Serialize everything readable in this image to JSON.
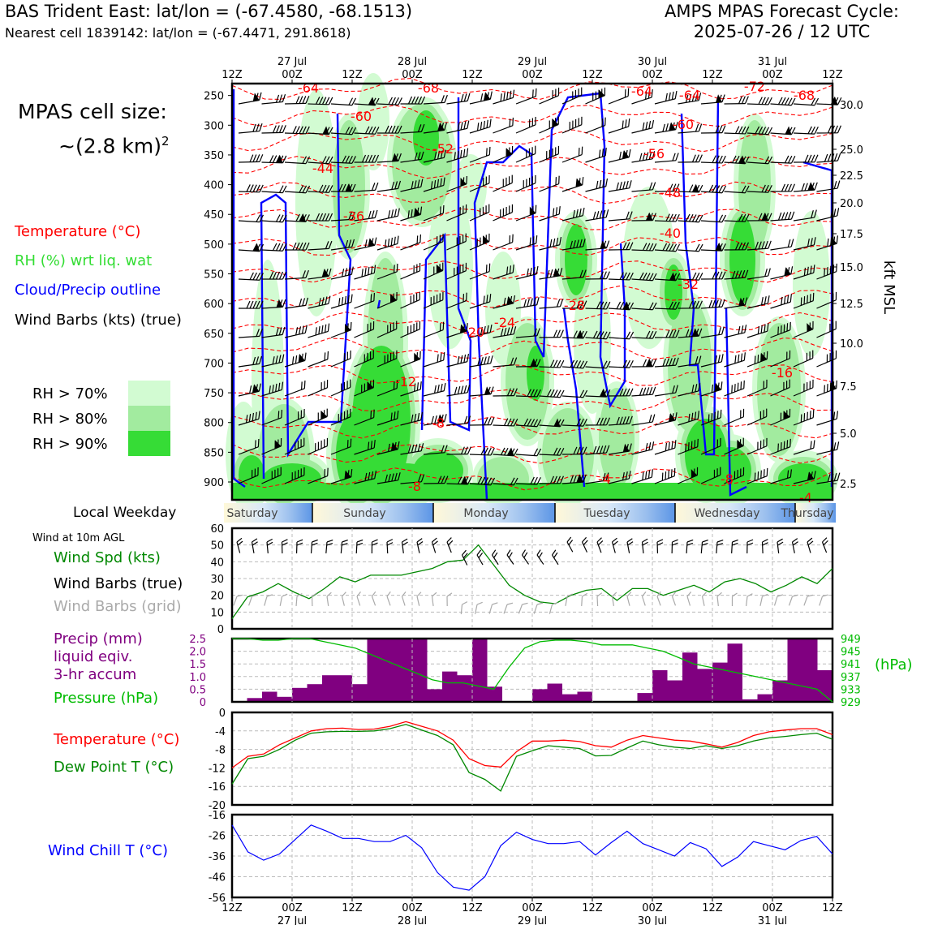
{
  "header": {
    "station": "BAS Trident East: lat/lon = (-67.4580, -68.1513)",
    "nearest": "Nearest cell 1839142: lat/lon = (-67.4471, 291.8618)",
    "cycle_line1": "AMPS MPAS Forecast Cycle:",
    "cycle_line2": "2025-07-26 / 12 UTC"
  },
  "cell_size": {
    "line1": "MPAS cell size:",
    "line2": "~(2.8 km)",
    "sup": "2"
  },
  "legend": {
    "temperature": "Temperature (°C)",
    "rh": "RH (%) wrt liq. wat",
    "cloud": "Cloud/Precip outline",
    "wind": "Wind Barbs (kts) (true)"
  },
  "rh_legend": [
    {
      "label": "RH > 70%",
      "color": "#d2fbd2"
    },
    {
      "label": "RH > 80%",
      "color": "#a2eb9f"
    },
    {
      "label": "RH > 90%",
      "color": "#36dc36"
    }
  ],
  "time_axis": {
    "top_hours": [
      "12Z",
      "00Z",
      "12Z",
      "00Z",
      "12Z",
      "00Z",
      "12Z",
      "00Z",
      "12Z",
      "00Z",
      "12Z"
    ],
    "dates": [
      {
        "label": "27 Jul",
        "index": 1
      },
      {
        "label": "28 Jul",
        "index": 3
      },
      {
        "label": "29 Jul",
        "index": 5
      },
      {
        "label": "30 Jul",
        "index": 7
      },
      {
        "label": "31 Jul",
        "index": 9
      }
    ]
  },
  "weekday": {
    "title": "Local Weekday",
    "days": [
      "Saturday",
      "Sunday",
      "Monday",
      "Tuesday",
      "Wednesday",
      "Thursday"
    ]
  },
  "colors": {
    "temperature": "#ff0000",
    "rh": "#33dd33",
    "cloud": "#0000ff",
    "precip": "#800080",
    "pressure": "#00bb00",
    "windspeed": "#008800",
    "dewpoint": "#008800",
    "windchill": "#0000ff",
    "grid_barbs": "#aaaaaa"
  },
  "panel_labels": {
    "wind10m_title": "Wind at 10m AGL",
    "wind_spd": "Wind Spd (kts)",
    "wind_barbs_true": "Wind Barbs (true)",
    "wind_barbs_grid": "Wind Barbs (grid)",
    "precip_1": "Precip (mm)",
    "precip_2": "liquid eqiv.",
    "precip_3": "3-hr accum",
    "pressure": "Pressure (hPa)",
    "pressure_unit": "(hPa)",
    "temp": "Temperature (°C)",
    "dewpoint": "Dew Point T (°C)",
    "windchill": "Wind Chill T (°C)",
    "kft": "kft MSL"
  },
  "chart_data": [
    {
      "type": "heatmap",
      "title": "Vertical cross-section",
      "y_pressure_ticks": [
        250,
        300,
        350,
        400,
        450,
        500,
        550,
        600,
        650,
        700,
        750,
        800,
        850,
        900
      ],
      "y_height_ticks_kft": [
        "30.0",
        "25.0",
        "22.5",
        "20.0",
        "17.5",
        "15.0",
        "12.5",
        "10.0",
        "7.5",
        "5.0",
        "2.5"
      ],
      "temperature_contour_labels": [
        "-64",
        "-68",
        "-72",
        "-68",
        "-64",
        "-64",
        "-60",
        "-60",
        "-56",
        "-52",
        "-48",
        "-44",
        "-40",
        "-36",
        "-32",
        "-28",
        "-24",
        "-20",
        "-16",
        "-12",
        "-8",
        "-8",
        "-4",
        "-4",
        "-8"
      ]
    },
    {
      "type": "line",
      "ylim": [
        0,
        60
      ],
      "yticks": [
        0,
        10,
        20,
        30,
        40,
        50,
        60
      ],
      "series": [
        {
          "name": "Wind Spd (kts)",
          "values": [
            6,
            19,
            22,
            27,
            22,
            18,
            24,
            31,
            28,
            32,
            32,
            32,
            34,
            36,
            40,
            41,
            50,
            38,
            26,
            20,
            16,
            15,
            20,
            23,
            24,
            17,
            24,
            24,
            20,
            23,
            26,
            22,
            28,
            30,
            27,
            22,
            26,
            31,
            27,
            36
          ]
        }
      ]
    },
    {
      "type": "bar",
      "ylim": [
        0,
        2.5
      ],
      "yticks": [
        "0",
        "0.5",
        "1.0",
        "1.5",
        "2.0",
        "2.5"
      ],
      "precip_values": [
        0,
        0.15,
        0.4,
        0.2,
        0.55,
        0.7,
        1.05,
        1.05,
        0.7,
        2.5,
        2.5,
        2.5,
        2.5,
        0.5,
        1.2,
        1.05,
        2.5,
        0.6,
        0,
        0,
        0.5,
        0.72,
        0.3,
        0.4,
        0,
        0,
        0,
        0.35,
        1.25,
        0.85,
        1.95,
        1.3,
        1.55,
        2.3,
        0.1,
        0.3,
        0.85,
        2.5,
        2.5,
        1.25
      ],
      "pressure_ticks": [
        "949",
        "945",
        "941",
        "937",
        "933",
        "929"
      ],
      "pressure_values": [
        949,
        949,
        948.5,
        948.5,
        949,
        949,
        948,
        947,
        946,
        944,
        942,
        940,
        938,
        936,
        935,
        935,
        934,
        933,
        940,
        946,
        948,
        948.5,
        948.5,
        948,
        947,
        947,
        947,
        946,
        945,
        943,
        941,
        940,
        939,
        938,
        937,
        936,
        935,
        934,
        933,
        929
      ]
    },
    {
      "type": "line",
      "ylim": [
        -20,
        0
      ],
      "yticks": [
        0,
        -4,
        -8,
        -12,
        -16,
        -20
      ],
      "series": [
        {
          "name": "Temperature (°C)",
          "values": [
            -12,
            -9.5,
            -9,
            -7,
            -5.5,
            -4,
            -3.5,
            -3.4,
            -3.7,
            -3.6,
            -3,
            -2,
            -3,
            -4,
            -6,
            -10,
            -11.5,
            -11.8,
            -8.5,
            -6.2,
            -6.2,
            -6,
            -6.3,
            -7.2,
            -7.5,
            -6,
            -5,
            -5.5,
            -6,
            -6.2,
            -6.8,
            -7.5,
            -6.5,
            -5,
            -4.2,
            -3.8,
            -3.5,
            -3.5,
            -4.8
          ]
        },
        {
          "name": "Dew Point T (°C)",
          "values": [
            -15.5,
            -10,
            -9.5,
            -8,
            -6,
            -4.5,
            -4.2,
            -4.1,
            -4.1,
            -4,
            -3.5,
            -2.6,
            -3.8,
            -5,
            -7,
            -13,
            -14.5,
            -17,
            -9.5,
            -8.3,
            -7.2,
            -7.5,
            -7.8,
            -9.4,
            -9.3,
            -7.7,
            -6.2,
            -7,
            -7.5,
            -7.8,
            -7.2,
            -7.8,
            -7.2,
            -6.2,
            -5.5,
            -5.2,
            -4.8,
            -4.5,
            -5.8
          ]
        }
      ]
    },
    {
      "type": "line",
      "ylim": [
        -56,
        -16
      ],
      "yticks": [
        -16,
        -26,
        -36,
        -46,
        -56
      ],
      "series": [
        {
          "name": "Wind Chill T (°C)",
          "values": [
            -21,
            -34,
            -38,
            -35,
            -28,
            -21,
            -24,
            -27.5,
            -27.5,
            -29,
            -29,
            -26,
            -32,
            -44,
            -51,
            -52.5,
            -46,
            -31,
            -24.5,
            -28,
            -30,
            -30,
            -29,
            -35.5,
            -29.5,
            -24,
            -30,
            -33,
            -36,
            -29.5,
            -32.5,
            -41,
            -36.5,
            -29,
            -31,
            -33,
            -28.5,
            -26.5,
            -35
          ]
        }
      ]
    }
  ]
}
